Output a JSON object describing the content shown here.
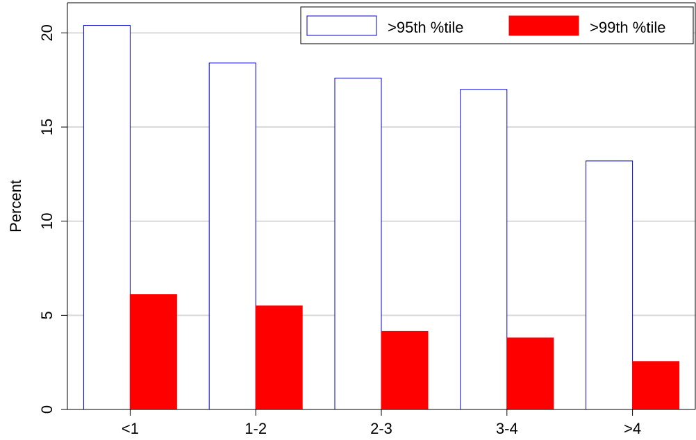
{
  "chart_data": {
    "type": "bar",
    "title": "",
    "xlabel": "",
    "ylabel": "Percent",
    "categories": [
      "<1",
      "1-2",
      "2-3",
      "3-4",
      ">4"
    ],
    "ylim": [
      0,
      21.6
    ],
    "yticks": [
      "0",
      "5",
      "10",
      "15",
      "20"
    ],
    "grid": true,
    "legend_position": "top-right",
    "series": [
      {
        "name": ">95th %tile",
        "values": [
          20.4,
          18.4,
          17.6,
          17.0,
          13.2
        ],
        "fill": "#ffffff",
        "stroke": "#0000cc"
      },
      {
        "name": ">99th %tile",
        "values": [
          6.1,
          5.5,
          4.15,
          3.8,
          2.55
        ],
        "fill": "#ff0000",
        "stroke": "#ff0000"
      }
    ]
  },
  "colors": {
    "grid": "#d9d9d9",
    "axis": "#000000"
  }
}
